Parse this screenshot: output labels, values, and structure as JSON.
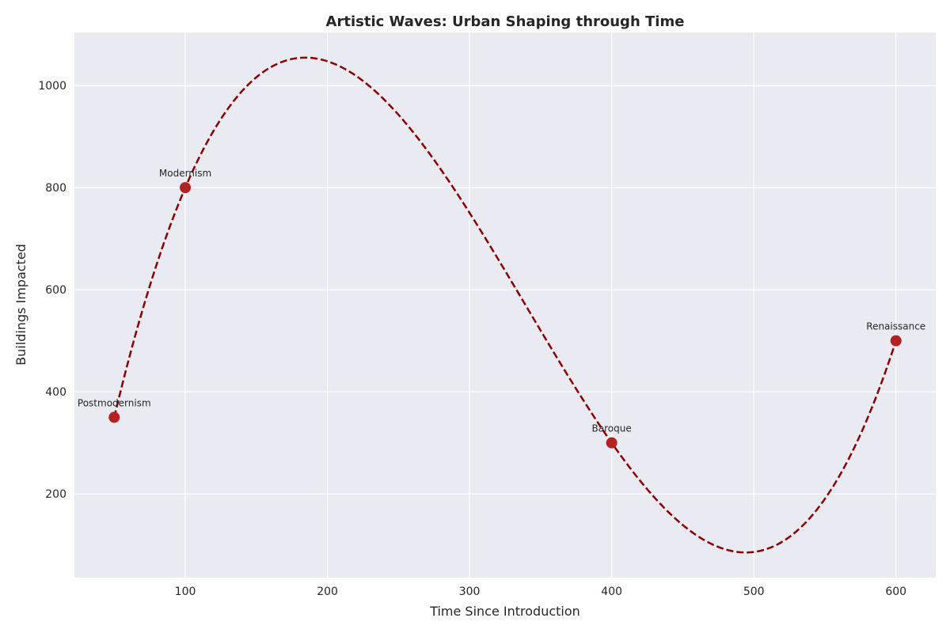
{
  "chart_data": {
    "type": "scatter",
    "title": "Artistic Waves: Urban Shaping through Time",
    "xlabel": "Time Since Introduction",
    "ylabel": "Buildings Impacted",
    "xlim": [
      22,
      628
    ],
    "ylim": [
      36,
      1104
    ],
    "xticks": [
      100,
      200,
      300,
      400,
      500,
      600
    ],
    "yticks": [
      200,
      400,
      600,
      800,
      1000
    ],
    "grid": true,
    "background_color": "#eaeaf2",
    "grid_color": "#ffffff",
    "point_color": "#b22222",
    "curve_color": "#8b0000",
    "points": [
      {
        "label": "Postmodernism",
        "x": 50,
        "y": 350
      },
      {
        "label": "Modernism",
        "x": 100,
        "y": 800
      },
      {
        "label": "Baroque",
        "x": 400,
        "y": 300
      },
      {
        "label": "Renaissance",
        "x": 600,
        "y": 500
      }
    ],
    "fit_curve": {
      "style": "dashed",
      "type": "cubic interpolation"
    }
  }
}
